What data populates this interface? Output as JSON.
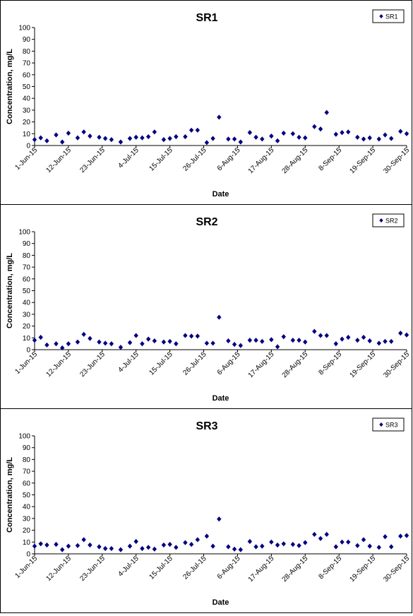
{
  "chart_data": [
    {
      "type": "scatter",
      "title": "SR1",
      "xlabel": "Date",
      "ylabel": "Concentration, mg/L",
      "ylim": [
        0,
        100
      ],
      "yticks": [
        "0",
        "10",
        "20",
        "30",
        "40",
        "50",
        "60",
        "70",
        "80",
        "90",
        "100"
      ],
      "xlim": [
        "2015-06-01",
        "2015-09-30"
      ],
      "xticks": [
        "1-Jun-15",
        "12-Jun-15",
        "23-Jun-15",
        "4-Jul-15",
        "15-Jul-15",
        "26-Jul-15",
        "6-Aug-15",
        "17-Aug-15",
        "28-Aug-15",
        "8-Sep-15",
        "19-Sep-15",
        "30-Sep-15"
      ],
      "legend": "top-right",
      "grid": false,
      "color": "#000080",
      "series": [
        {
          "name": "SR1",
          "points": [
            {
              "x": "2015-06-01",
              "y": 5
            },
            {
              "x": "2015-06-03",
              "y": 6.5
            },
            {
              "x": "2015-06-05",
              "y": 4
            },
            {
              "x": "2015-06-08",
              "y": 9
            },
            {
              "x": "2015-06-10",
              "y": 3
            },
            {
              "x": "2015-06-12",
              "y": 10.5
            },
            {
              "x": "2015-06-15",
              "y": 6.5
            },
            {
              "x": "2015-06-17",
              "y": 11.5
            },
            {
              "x": "2015-06-19",
              "y": 8
            },
            {
              "x": "2015-06-22",
              "y": 7
            },
            {
              "x": "2015-06-24",
              "y": 6
            },
            {
              "x": "2015-06-26",
              "y": 5
            },
            {
              "x": "2015-06-29",
              "y": 3
            },
            {
              "x": "2015-07-02",
              "y": 6
            },
            {
              "x": "2015-07-04",
              "y": 7
            },
            {
              "x": "2015-07-06",
              "y": 6.5
            },
            {
              "x": "2015-07-08",
              "y": 7.5
            },
            {
              "x": "2015-07-10",
              "y": 11.5
            },
            {
              "x": "2015-07-13",
              "y": 5
            },
            {
              "x": "2015-07-15",
              "y": 6
            },
            {
              "x": "2015-07-17",
              "y": 7.5
            },
            {
              "x": "2015-07-20",
              "y": 7.5
            },
            {
              "x": "2015-07-22",
              "y": 13
            },
            {
              "x": "2015-07-24",
              "y": 13
            },
            {
              "x": "2015-07-27",
              "y": 2.5
            },
            {
              "x": "2015-07-29",
              "y": 6
            },
            {
              "x": "2015-07-31",
              "y": 24
            },
            {
              "x": "2015-08-03",
              "y": 5.5
            },
            {
              "x": "2015-08-05",
              "y": 5.5
            },
            {
              "x": "2015-08-07",
              "y": 3
            },
            {
              "x": "2015-08-10",
              "y": 11
            },
            {
              "x": "2015-08-12",
              "y": 7
            },
            {
              "x": "2015-08-14",
              "y": 5.5
            },
            {
              "x": "2015-08-17",
              "y": 8
            },
            {
              "x": "2015-08-19",
              "y": 4
            },
            {
              "x": "2015-08-21",
              "y": 10.5
            },
            {
              "x": "2015-08-24",
              "y": 10
            },
            {
              "x": "2015-08-26",
              "y": 7
            },
            {
              "x": "2015-08-28",
              "y": 6.5
            },
            {
              "x": "2015-08-31",
              "y": 16
            },
            {
              "x": "2015-09-02",
              "y": 14
            },
            {
              "x": "2015-09-04",
              "y": 28
            },
            {
              "x": "2015-09-07",
              "y": 9.5
            },
            {
              "x": "2015-09-09",
              "y": 11
            },
            {
              "x": "2015-09-11",
              "y": 11.5
            },
            {
              "x": "2015-09-14",
              "y": 7
            },
            {
              "x": "2015-09-16",
              "y": 5.5
            },
            {
              "x": "2015-09-18",
              "y": 6.5
            },
            {
              "x": "2015-09-21",
              "y": 5.5
            },
            {
              "x": "2015-09-23",
              "y": 9
            },
            {
              "x": "2015-09-25",
              "y": 6
            },
            {
              "x": "2015-09-28",
              "y": 12
            },
            {
              "x": "2015-09-30",
              "y": 10
            }
          ]
        }
      ]
    },
    {
      "type": "scatter",
      "title": "SR2",
      "xlabel": "Date",
      "ylabel": "Concentration, mg/L",
      "ylim": [
        0,
        100
      ],
      "yticks": [
        "0",
        "10",
        "20",
        "30",
        "40",
        "50",
        "60",
        "70",
        "80",
        "90",
        "100"
      ],
      "xlim": [
        "2015-06-01",
        "2015-09-30"
      ],
      "xticks": [
        "1-Jun-15",
        "12-Jun-15",
        "23-Jun-15",
        "4-Jul-15",
        "15-Jul-15",
        "26-Jul-15",
        "6-Aug-15",
        "17-Aug-15",
        "28-Aug-15",
        "8-Sep-15",
        "19-Sep-15",
        "30-Sep-15"
      ],
      "legend": "top-right",
      "grid": false,
      "color": "#000080",
      "series": [
        {
          "name": "SR2",
          "points": [
            {
              "x": "2015-06-01",
              "y": 8
            },
            {
              "x": "2015-06-03",
              "y": 10.5
            },
            {
              "x": "2015-06-05",
              "y": 4
            },
            {
              "x": "2015-06-08",
              "y": 5
            },
            {
              "x": "2015-06-10",
              "y": 1.5
            },
            {
              "x": "2015-06-12",
              "y": 5
            },
            {
              "x": "2015-06-15",
              "y": 6.5
            },
            {
              "x": "2015-06-17",
              "y": 13
            },
            {
              "x": "2015-06-19",
              "y": 9.5
            },
            {
              "x": "2015-06-22",
              "y": 6.5
            },
            {
              "x": "2015-06-24",
              "y": 5.5
            },
            {
              "x": "2015-06-26",
              "y": 5
            },
            {
              "x": "2015-06-29",
              "y": 2
            },
            {
              "x": "2015-07-02",
              "y": 6
            },
            {
              "x": "2015-07-04",
              "y": 12
            },
            {
              "x": "2015-07-06",
              "y": 5
            },
            {
              "x": "2015-07-08",
              "y": 9
            },
            {
              "x": "2015-07-10",
              "y": 7.5
            },
            {
              "x": "2015-07-13",
              "y": 6.5
            },
            {
              "x": "2015-07-15",
              "y": 7
            },
            {
              "x": "2015-07-17",
              "y": 5
            },
            {
              "x": "2015-07-20",
              "y": 12
            },
            {
              "x": "2015-07-22",
              "y": 11.5
            },
            {
              "x": "2015-07-24",
              "y": 11.5
            },
            {
              "x": "2015-07-27",
              "y": 5.5
            },
            {
              "x": "2015-07-29",
              "y": 5.5
            },
            {
              "x": "2015-07-31",
              "y": 27.5
            },
            {
              "x": "2015-08-03",
              "y": 7.5
            },
            {
              "x": "2015-08-05",
              "y": 4.5
            },
            {
              "x": "2015-08-07",
              "y": 3.5
            },
            {
              "x": "2015-08-10",
              "y": 8
            },
            {
              "x": "2015-08-12",
              "y": 8
            },
            {
              "x": "2015-08-14",
              "y": 7
            },
            {
              "x": "2015-08-17",
              "y": 8.5
            },
            {
              "x": "2015-08-19",
              "y": 2.5
            },
            {
              "x": "2015-08-21",
              "y": 11
            },
            {
              "x": "2015-08-24",
              "y": 8
            },
            {
              "x": "2015-08-26",
              "y": 8
            },
            {
              "x": "2015-08-28",
              "y": 6.5
            },
            {
              "x": "2015-08-31",
              "y": 15.5
            },
            {
              "x": "2015-09-02",
              "y": 12
            },
            {
              "x": "2015-09-04",
              "y": 12
            },
            {
              "x": "2015-09-07",
              "y": 5
            },
            {
              "x": "2015-09-09",
              "y": 9
            },
            {
              "x": "2015-09-11",
              "y": 10.5
            },
            {
              "x": "2015-09-14",
              "y": 8
            },
            {
              "x": "2015-09-16",
              "y": 10.5
            },
            {
              "x": "2015-09-18",
              "y": 7.5
            },
            {
              "x": "2015-09-21",
              "y": 5.5
            },
            {
              "x": "2015-09-23",
              "y": 7
            },
            {
              "x": "2015-09-25",
              "y": 7
            },
            {
              "x": "2015-09-28",
              "y": 14
            },
            {
              "x": "2015-09-30",
              "y": 12.5
            }
          ]
        }
      ]
    },
    {
      "type": "scatter",
      "title": "SR3",
      "xlabel": "Date",
      "ylabel": "Concentration, mg/L",
      "ylim": [
        0,
        100
      ],
      "yticks": [
        "0",
        "10",
        "20",
        "30",
        "40",
        "50",
        "60",
        "70",
        "80",
        "90",
        "100"
      ],
      "xlim": [
        "2015-06-01",
        "2015-09-30"
      ],
      "xticks": [
        "1-Jun-15",
        "12-Jun-15",
        "23-Jun-15",
        "4-Jul-15",
        "15-Jul-15",
        "26-Jul-15",
        "6-Aug-15",
        "17-Aug-15",
        "28-Aug-15",
        "8-Sep-15",
        "19-Sep-15",
        "30-Sep-15"
      ],
      "legend": "top-right",
      "grid": false,
      "color": "#000080",
      "series": [
        {
          "name": "SR3",
          "points": [
            {
              "x": "2015-06-01",
              "y": 6.5
            },
            {
              "x": "2015-06-03",
              "y": 8.5
            },
            {
              "x": "2015-06-05",
              "y": 7.5
            },
            {
              "x": "2015-06-08",
              "y": 8
            },
            {
              "x": "2015-06-10",
              "y": 3.5
            },
            {
              "x": "2015-06-12",
              "y": 6.5
            },
            {
              "x": "2015-06-15",
              "y": 7
            },
            {
              "x": "2015-06-17",
              "y": 12
            },
            {
              "x": "2015-06-19",
              "y": 7.5
            },
            {
              "x": "2015-06-22",
              "y": 6
            },
            {
              "x": "2015-06-24",
              "y": 4.5
            },
            {
              "x": "2015-06-26",
              "y": 4.5
            },
            {
              "x": "2015-06-29",
              "y": 3.5
            },
            {
              "x": "2015-07-02",
              "y": 6.5
            },
            {
              "x": "2015-07-04",
              "y": 10.5
            },
            {
              "x": "2015-07-06",
              "y": 4.5
            },
            {
              "x": "2015-07-08",
              "y": 5.5
            },
            {
              "x": "2015-07-10",
              "y": 4
            },
            {
              "x": "2015-07-13",
              "y": 7.5
            },
            {
              "x": "2015-07-15",
              "y": 8
            },
            {
              "x": "2015-07-17",
              "y": 5.5
            },
            {
              "x": "2015-07-20",
              "y": 9.5
            },
            {
              "x": "2015-07-22",
              "y": 8
            },
            {
              "x": "2015-07-24",
              "y": 12
            },
            {
              "x": "2015-07-27",
              "y": 15
            },
            {
              "x": "2015-07-29",
              "y": 6.5
            },
            {
              "x": "2015-07-31",
              "y": 29.5
            },
            {
              "x": "2015-08-03",
              "y": 6
            },
            {
              "x": "2015-08-05",
              "y": 4
            },
            {
              "x": "2015-08-07",
              "y": 3.5
            },
            {
              "x": "2015-08-10",
              "y": 10.5
            },
            {
              "x": "2015-08-12",
              "y": 6
            },
            {
              "x": "2015-08-14",
              "y": 6.5
            },
            {
              "x": "2015-08-17",
              "y": 10
            },
            {
              "x": "2015-08-19",
              "y": 7.5
            },
            {
              "x": "2015-08-21",
              "y": 8.5
            },
            {
              "x": "2015-08-24",
              "y": 8
            },
            {
              "x": "2015-08-26",
              "y": 7
            },
            {
              "x": "2015-08-28",
              "y": 9.5
            },
            {
              "x": "2015-08-31",
              "y": 16.5
            },
            {
              "x": "2015-09-02",
              "y": 13
            },
            {
              "x": "2015-09-04",
              "y": 16.5
            },
            {
              "x": "2015-09-07",
              "y": 6
            },
            {
              "x": "2015-09-09",
              "y": 10
            },
            {
              "x": "2015-09-11",
              "y": 10
            },
            {
              "x": "2015-09-14",
              "y": 7
            },
            {
              "x": "2015-09-16",
              "y": 12
            },
            {
              "x": "2015-09-18",
              "y": 6.5
            },
            {
              "x": "2015-09-21",
              "y": 5.5
            },
            {
              "x": "2015-09-23",
              "y": 14.5
            },
            {
              "x": "2015-09-25",
              "y": 6
            },
            {
              "x": "2015-09-28",
              "y": 15
            },
            {
              "x": "2015-09-30",
              "y": 15.5
            }
          ]
        }
      ]
    }
  ]
}
